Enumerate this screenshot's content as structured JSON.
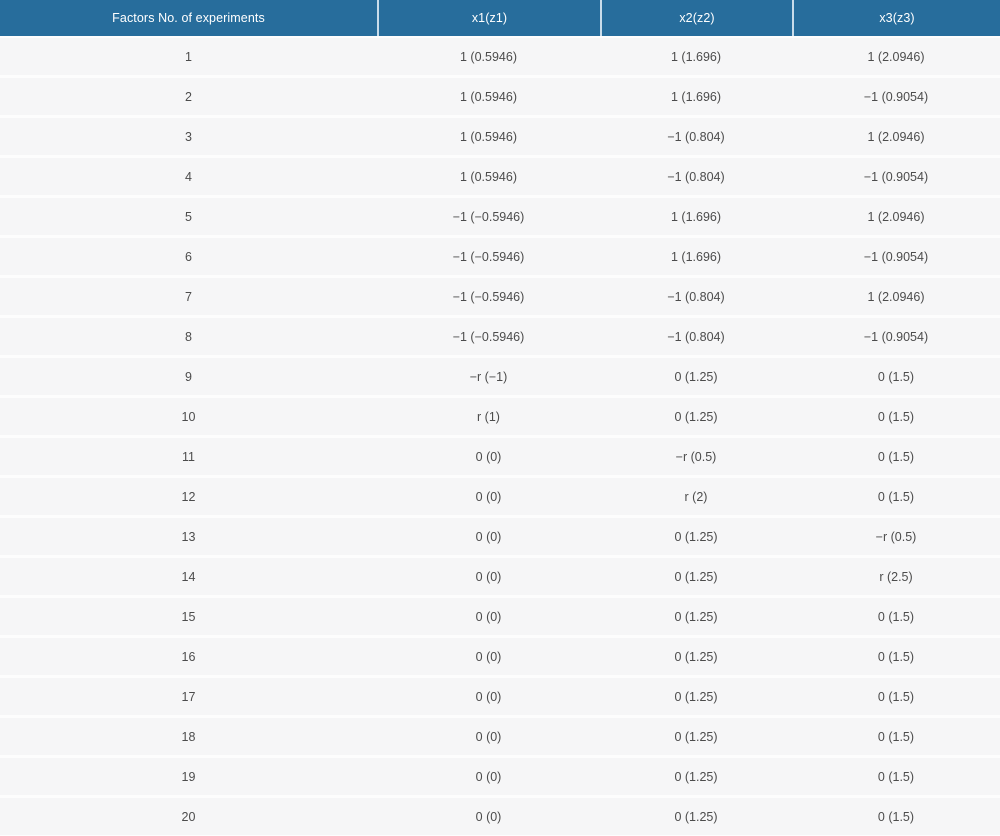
{
  "table": {
    "columns": [
      "Factors No. of experiments",
      "x1(z1)",
      "x2(z2)",
      "x3(z3)"
    ],
    "rows": [
      {
        "no": "1",
        "x1": "1 (0.5946)",
        "x2": "1 (1.696)",
        "x3": "1 (2.0946)"
      },
      {
        "no": "2",
        "x1": "1 (0.5946)",
        "x2": "1 (1.696)",
        "x3": "−1 (0.9054)"
      },
      {
        "no": "3",
        "x1": "1 (0.5946)",
        "x2": "−1 (0.804)",
        "x3": "1 (2.0946)"
      },
      {
        "no": "4",
        "x1": "1 (0.5946)",
        "x2": "−1 (0.804)",
        "x3": "−1 (0.9054)"
      },
      {
        "no": "5",
        "x1": "−1 (−0.5946)",
        "x2": "1 (1.696)",
        "x3": "1 (2.0946)"
      },
      {
        "no": "6",
        "x1": "−1 (−0.5946)",
        "x2": "1 (1.696)",
        "x3": "−1 (0.9054)"
      },
      {
        "no": "7",
        "x1": "−1 (−0.5946)",
        "x2": "−1 (0.804)",
        "x3": "1 (2.0946)"
      },
      {
        "no": "8",
        "x1": "−1 (−0.5946)",
        "x2": "−1 (0.804)",
        "x3": "−1 (0.9054)"
      },
      {
        "no": "9",
        "x1": "−r (−1)",
        "x2": "0 (1.25)",
        "x3": "0 (1.5)"
      },
      {
        "no": "10",
        "x1": "r (1)",
        "x2": "0 (1.25)",
        "x3": "0 (1.5)"
      },
      {
        "no": "11",
        "x1": "0 (0)",
        "x2": "−r (0.5)",
        "x3": "0 (1.5)"
      },
      {
        "no": "12",
        "x1": "0 (0)",
        "x2": "r (2)",
        "x3": "0 (1.5)"
      },
      {
        "no": "13",
        "x1": "0 (0)",
        "x2": "0 (1.25)",
        "x3": "−r (0.5)"
      },
      {
        "no": "14",
        "x1": "0 (0)",
        "x2": "0 (1.25)",
        "x3": "r (2.5)"
      },
      {
        "no": "15",
        "x1": "0 (0)",
        "x2": "0 (1.25)",
        "x3": "0 (1.5)"
      },
      {
        "no": "16",
        "x1": "0 (0)",
        "x2": "0 (1.25)",
        "x3": "0 (1.5)"
      },
      {
        "no": "17",
        "x1": "0 (0)",
        "x2": "0 (1.25)",
        "x3": "0 (1.5)"
      },
      {
        "no": "18",
        "x1": "0 (0)",
        "x2": "0 (1.25)",
        "x3": "0 (1.5)"
      },
      {
        "no": "19",
        "x1": "0 (0)",
        "x2": "0 (1.25)",
        "x3": "0 (1.5)"
      },
      {
        "no": "20",
        "x1": "0 (0)",
        "x2": "0 (1.25)",
        "x3": "0 (1.5)"
      }
    ],
    "colors": {
      "header_bg": "#276d9c",
      "header_text": "#ffffff",
      "header_divider": "#c9dcea",
      "row_bg": "#f6f6f7",
      "row_separator": "#fdfdfd",
      "cell_text": "#4c4c4c"
    }
  }
}
